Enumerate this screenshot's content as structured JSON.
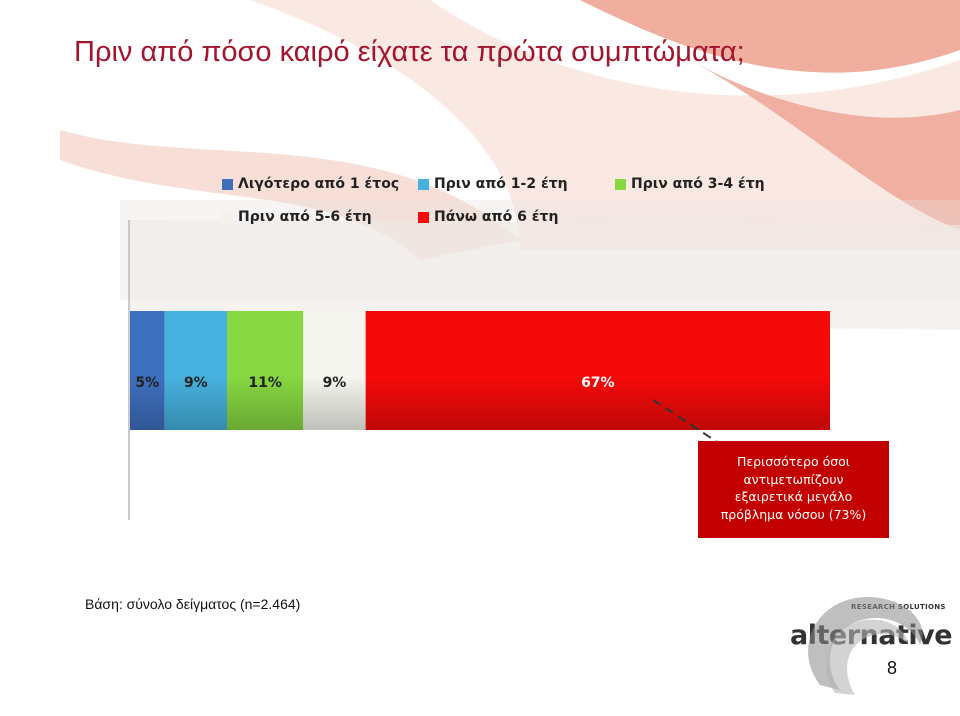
{
  "slide": {
    "title": "Πριν από πόσο καιρό είχατε τα πρώτα συμπτώματα;",
    "base_note": "Βάση: σύνολο δείγματος (n=2.464)",
    "page_number": "8"
  },
  "chart_data": {
    "type": "bar",
    "orientation": "horizontal-stacked-100",
    "title": "Πριν από πόσο καιρό είχατε τα πρώτα συμπτώματα;",
    "legend_position": "top",
    "grid": false,
    "series": [
      {
        "name": "Λιγότερο από 1 έτος",
        "value": 5,
        "label": "5%",
        "color": "#3e6fbf"
      },
      {
        "name": "Πριν από 1-2 έτη",
        "value": 9,
        "label": "9%",
        "color": "#46b1de"
      },
      {
        "name": "Πριν από 3-4 έτη",
        "value": 11,
        "label": "11%",
        "color": "#86d740"
      },
      {
        "name": "Πριν από 5-6 έτη",
        "value": 9,
        "label": "9%",
        "color": "#f5f5ef"
      },
      {
        "name": "Πάνω από 6 έτη",
        "value": 67,
        "label": "67%",
        "color": "#f50a0a"
      }
    ]
  },
  "callout": {
    "lines": [
      "Περισσότερο όσοι",
      "αντιμετωπίζουν",
      "εξαιρετικά μεγάλο",
      "πρόβλημα νόσου (73%)"
    ],
    "color": "#c30000"
  },
  "logo": {
    "word": "alternative",
    "tagline": "RESEARCH SOLUTIONS"
  },
  "colors": {
    "title": "#a3142f",
    "decor_salmon": "#eda594"
  }
}
